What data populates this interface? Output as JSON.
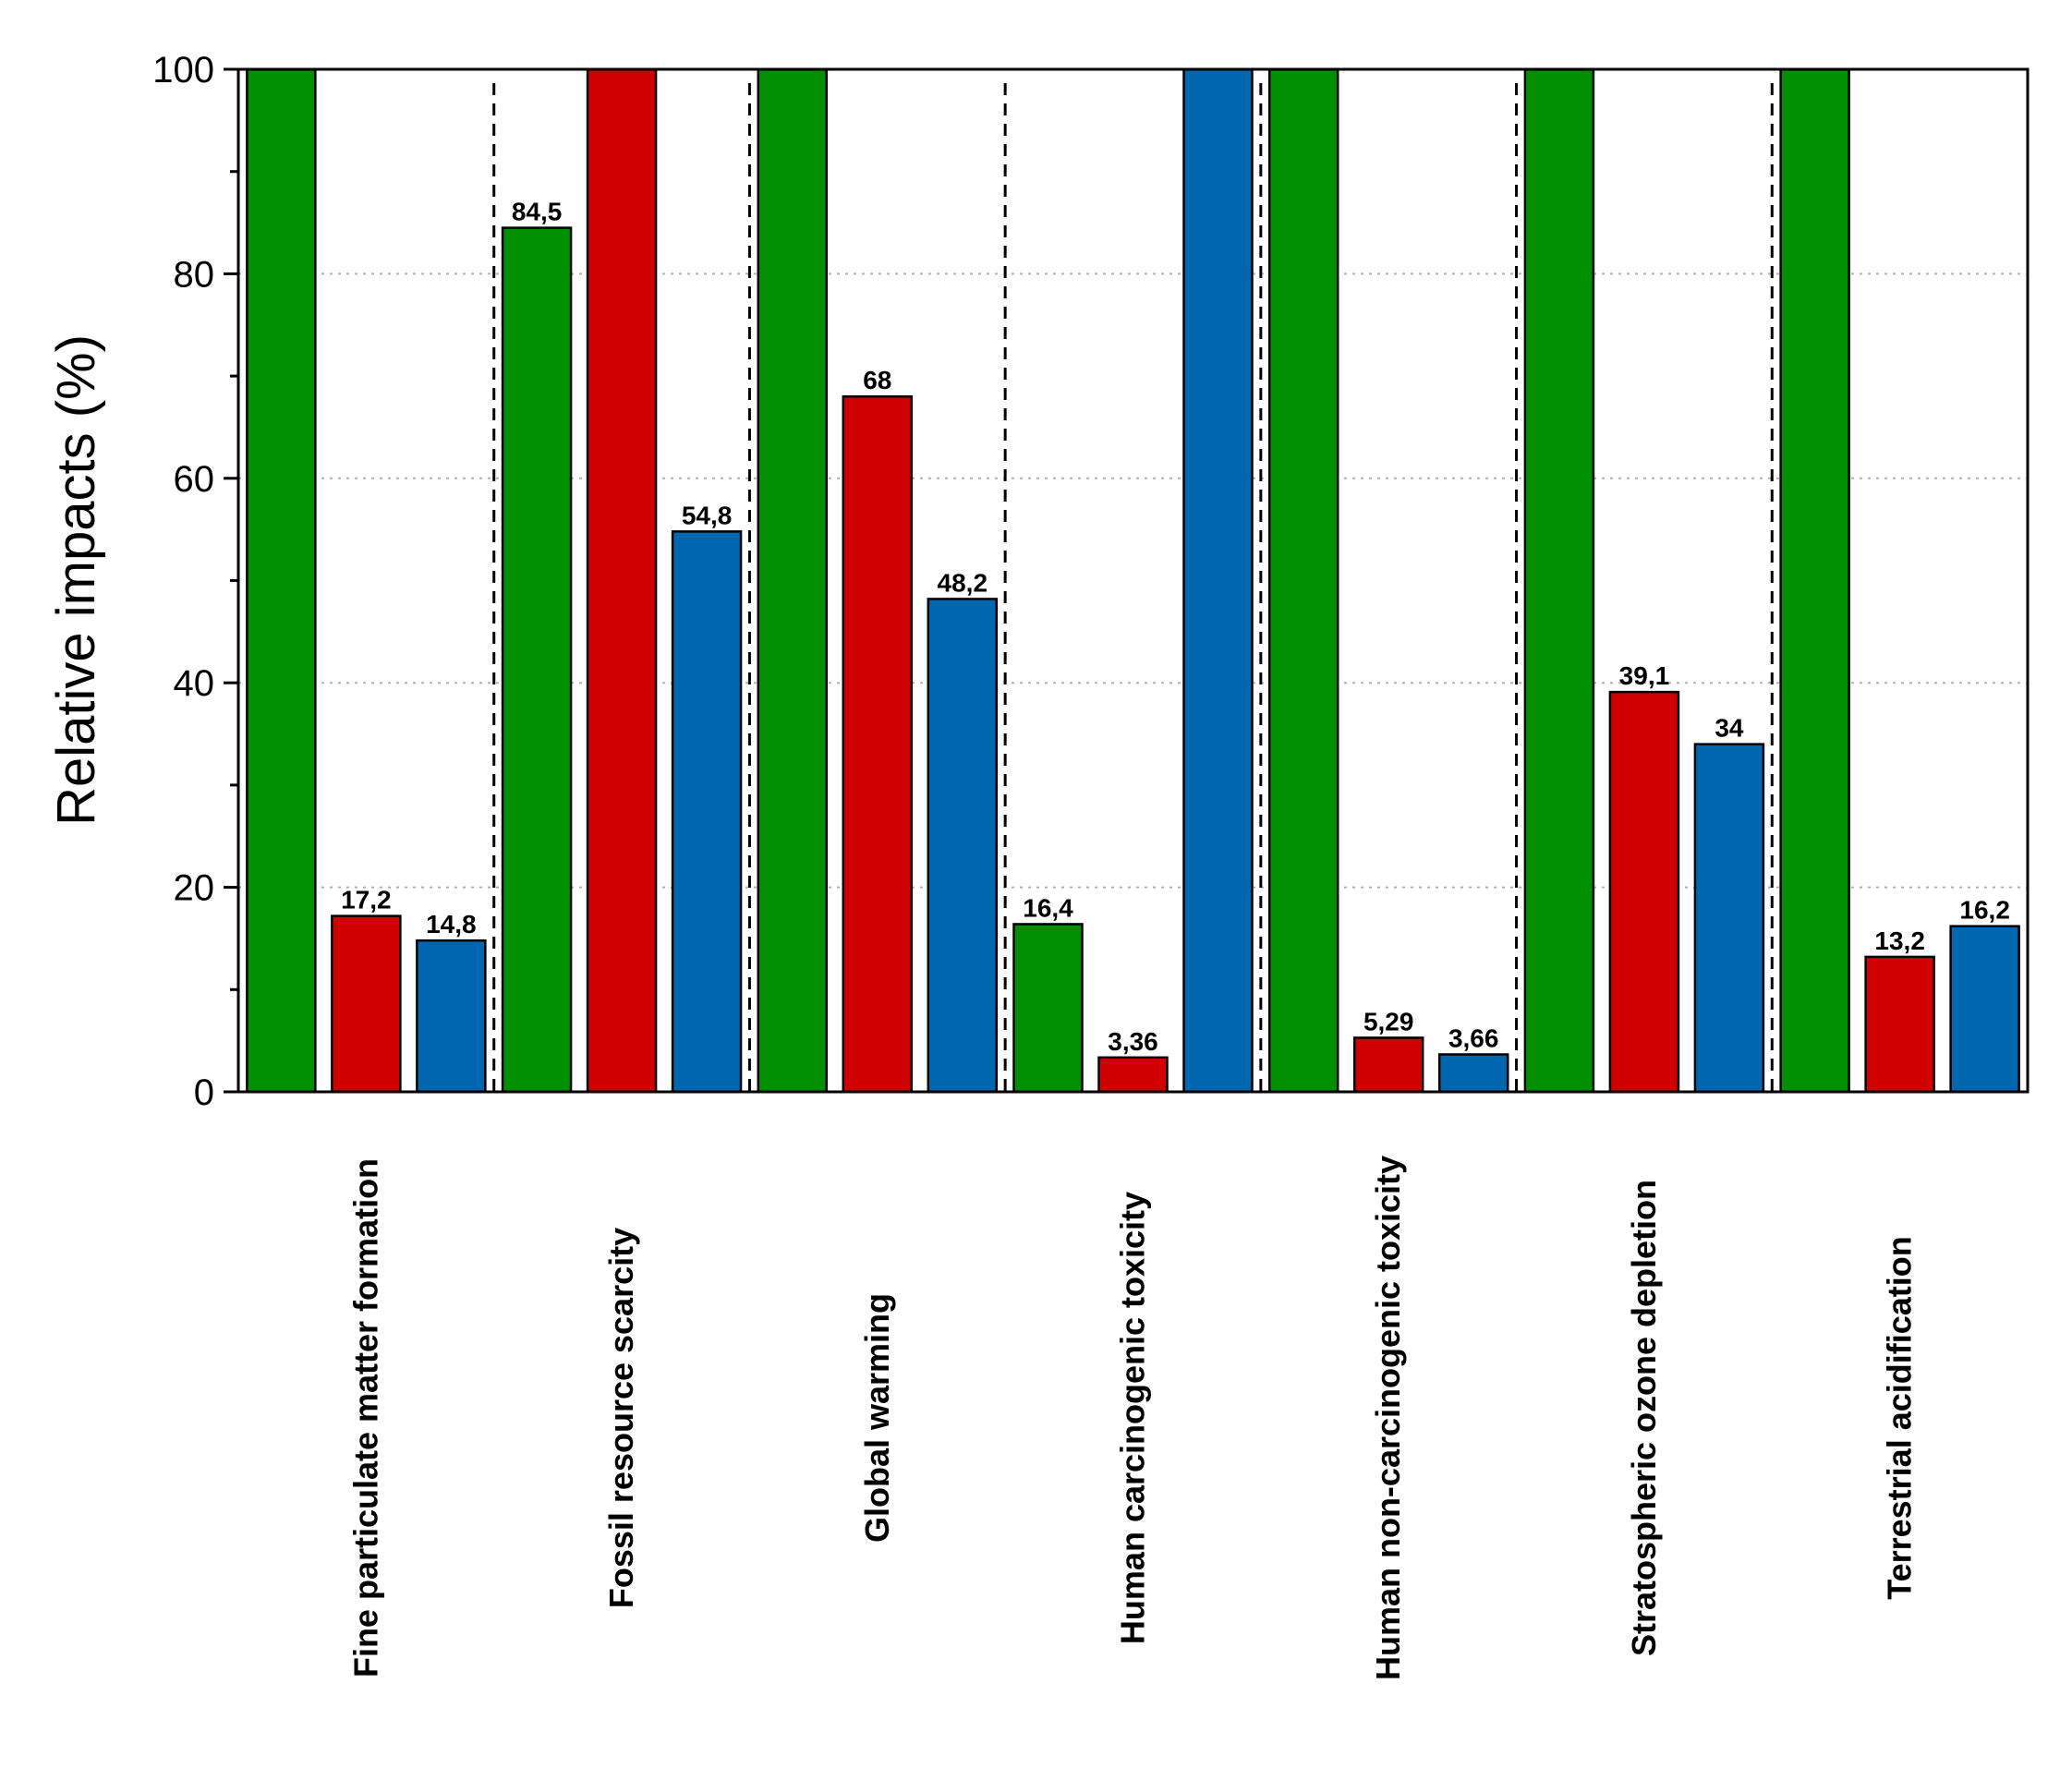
{
  "chart_data": {
    "type": "bar",
    "title": "",
    "xlabel": "",
    "ylabel": "Relative impacts (%)",
    "ylim": [
      0,
      100
    ],
    "yticks": [
      0,
      20,
      40,
      60,
      80,
      100
    ],
    "grid": "horizontal dotted",
    "categories": [
      "Fine particulate matter formation",
      "Fossil resource scarcity",
      "Global warming",
      "Human carcinogenic toxicity",
      "Human non-carcinogenic toxicity",
      "Stratospheric ozone depletion",
      "Terrestrial acidification"
    ],
    "series": [
      {
        "name": "series-green",
        "color": "#008f00",
        "values": [
          100,
          84.5,
          100,
          16.4,
          100,
          100,
          100
        ],
        "labels": [
          "",
          "84,5",
          "",
          "16,4",
          "",
          "",
          ""
        ]
      },
      {
        "name": "series-red",
        "color": "#d10000",
        "values": [
          17.2,
          100,
          68,
          3.36,
          5.29,
          39.1,
          13.2
        ],
        "labels": [
          "17,2",
          "",
          "68",
          "3,36",
          "5,29",
          "39,1",
          "13,2"
        ]
      },
      {
        "name": "series-blue",
        "color": "#0066ad",
        "values": [
          14.8,
          54.8,
          48.2,
          100,
          3.66,
          34,
          16.2
        ],
        "labels": [
          "14,8",
          "54,8",
          "48,2",
          "",
          "3,66",
          "34",
          "16,2"
        ]
      }
    ]
  }
}
